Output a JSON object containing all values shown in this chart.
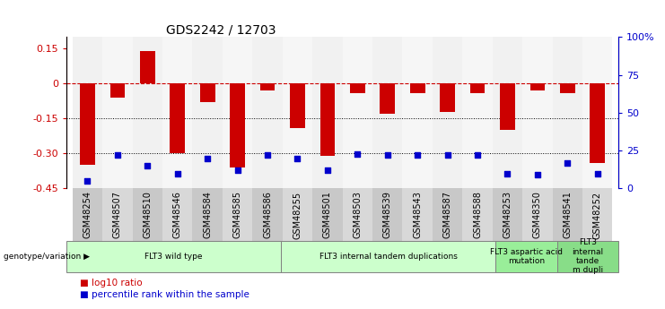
{
  "title": "GDS2242 / 12703",
  "samples": [
    "GSM48254",
    "GSM48507",
    "GSM48510",
    "GSM48546",
    "GSM48584",
    "GSM48585",
    "GSM48586",
    "GSM48255",
    "GSM48501",
    "GSM48503",
    "GSM48539",
    "GSM48543",
    "GSM48587",
    "GSM48588",
    "GSM48253",
    "GSM48350",
    "GSM48541",
    "GSM48252"
  ],
  "log10_ratio": [
    -0.35,
    -0.06,
    0.14,
    -0.3,
    -0.08,
    -0.36,
    -0.03,
    -0.19,
    -0.31,
    -0.04,
    -0.13,
    -0.04,
    -0.12,
    -0.04,
    -0.2,
    -0.03,
    -0.04,
    -0.34
  ],
  "percentile_rank": [
    5,
    22,
    15,
    10,
    20,
    12,
    22,
    20,
    12,
    23,
    22,
    22,
    22,
    22,
    10,
    9,
    17,
    10
  ],
  "ylim_left": [
    -0.45,
    0.2
  ],
  "ylim_right": [
    0,
    100
  ],
  "bar_color": "#cc0000",
  "dot_color": "#0000cc",
  "groups": [
    {
      "label": "FLT3 wild type",
      "start": 0,
      "end": 7,
      "color": "#ccffcc"
    },
    {
      "label": "FLT3 internal tandem duplications",
      "start": 7,
      "end": 14,
      "color": "#ccffcc"
    },
    {
      "label": "FLT3 aspartic acid\nmutation",
      "start": 14,
      "end": 16,
      "color": "#99ee99"
    },
    {
      "label": "FLT3\ninternal\ntande\nm dupli",
      "start": 16,
      "end": 18,
      "color": "#88dd88"
    }
  ],
  "title_fontsize": 10,
  "tick_label_fontsize": 7,
  "genotype_label": "genotype/variation",
  "legend_items": [
    {
      "color": "#cc0000",
      "label": "log10 ratio"
    },
    {
      "color": "#0000cc",
      "label": "percentile rank within the sample"
    }
  ]
}
